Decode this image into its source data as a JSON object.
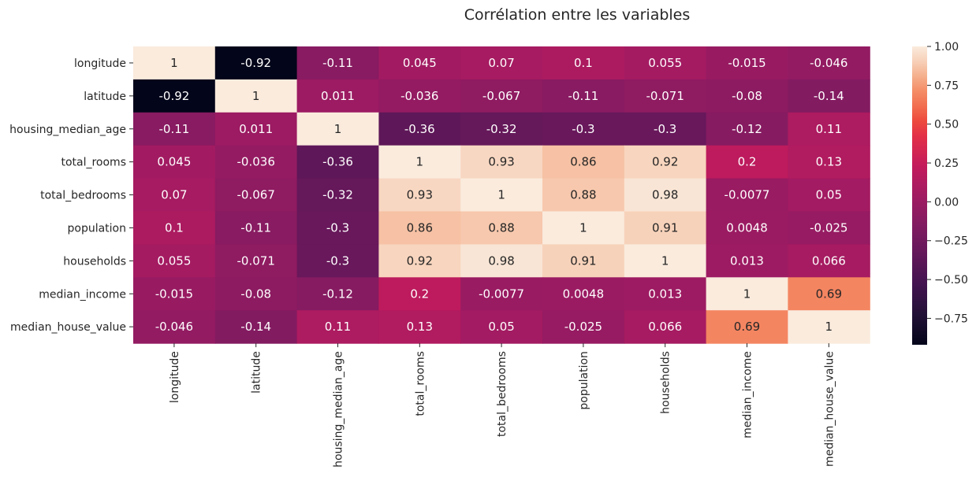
{
  "chart_data": {
    "type": "heatmap",
    "title": "Corrélation entre les variables",
    "rows": [
      "longitude",
      "latitude",
      "housing_median_age",
      "total_rooms",
      "total_bedrooms",
      "population",
      "households",
      "median_income",
      "median_house_value"
    ],
    "columns": [
      "longitude",
      "latitude",
      "housing_median_age",
      "total_rooms",
      "total_bedrooms",
      "population",
      "households",
      "median_income",
      "median_house_value"
    ],
    "values": [
      [
        1,
        -0.92,
        -0.11,
        0.045,
        0.07,
        0.1,
        0.055,
        -0.015,
        -0.046
      ],
      [
        -0.92,
        1,
        0.011,
        -0.036,
        -0.067,
        -0.11,
        -0.071,
        -0.08,
        -0.14
      ],
      [
        -0.11,
        0.011,
        1,
        -0.36,
        -0.32,
        -0.3,
        -0.3,
        -0.12,
        0.11
      ],
      [
        0.045,
        -0.036,
        -0.36,
        1,
        0.93,
        0.86,
        0.92,
        0.2,
        0.13
      ],
      [
        0.07,
        -0.067,
        -0.32,
        0.93,
        1,
        0.88,
        0.98,
        -0.0077,
        0.05
      ],
      [
        0.1,
        -0.11,
        -0.3,
        0.86,
        0.88,
        1,
        0.91,
        0.0048,
        -0.025
      ],
      [
        0.055,
        -0.071,
        -0.3,
        0.92,
        0.98,
        0.91,
        1,
        0.013,
        0.066
      ],
      [
        -0.015,
        -0.08,
        -0.12,
        0.2,
        -0.0077,
        0.0048,
        0.013,
        1,
        0.69
      ],
      [
        -0.046,
        -0.14,
        0.11,
        0.13,
        0.05,
        -0.025,
        0.066,
        0.69,
        1
      ]
    ],
    "colorbar": {
      "min": -0.92,
      "max": 1,
      "ticks": [
        "1.00",
        "0.75",
        "0.50",
        "0.25",
        "0.00",
        "−0.25",
        "−0.50",
        "−0.75"
      ],
      "tick_values": [
        1.0,
        0.75,
        0.5,
        0.25,
        0.0,
        -0.25,
        -0.5,
        -0.75
      ]
    },
    "colormap": "rocket",
    "annotated": true
  }
}
